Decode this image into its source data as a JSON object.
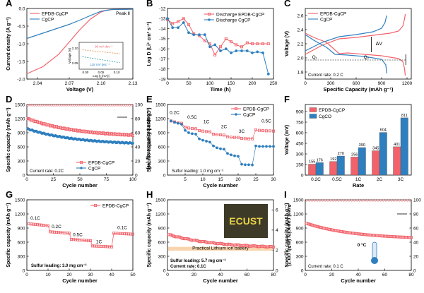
{
  "colors": {
    "red": "#f2626a",
    "blue": "#2e7fbf",
    "gray": "#9a9a9a",
    "teal": "#1f9aa6",
    "orange": "#e08a4a",
    "axis": "#000000"
  },
  "chart_data": [
    {
      "panel": "A",
      "type": "line",
      "xlabel": "Voltage (V)",
      "ylabel": "Current density (A g⁻¹)",
      "xlim": [
        2.03,
        2.13
      ],
      "ylim": [
        -2.0,
        0.0
      ],
      "xticks": [
        2.04,
        2.07,
        2.1,
        2.13
      ],
      "yticks": [
        -2.0,
        -1.5,
        -1.0,
        -0.5,
        0.0
      ],
      "peak_label": "Peak Ⅱ",
      "series": [
        {
          "name": "EPDB-CgCP",
          "color": "red",
          "x": [
            2.03,
            2.045,
            2.06,
            2.07,
            2.08,
            2.09,
            2.1,
            2.105,
            2.11,
            2.13
          ],
          "y": [
            -1.85,
            -1.65,
            -1.3,
            -0.95,
            -0.6,
            -0.3,
            -0.1,
            -0.05,
            -0.03,
            -0.02
          ]
        },
        {
          "name": "CgCP",
          "color": "blue",
          "x": [
            2.03,
            2.05,
            2.07,
            2.08,
            2.09,
            2.1,
            2.11,
            2.13
          ],
          "y": [
            -0.85,
            -0.65,
            -0.45,
            -0.33,
            -0.2,
            -0.08,
            -0.03,
            -0.02
          ]
        }
      ],
      "inset": {
        "xlabel": "Log |I (mA)|",
        "ylabel": "Voltage (V)",
        "xticks": [
          0.0,
          0.05,
          0.1
        ],
        "yticks": [
          2.05,
          2.1
        ],
        "slope1": "90 mV dec⁻¹",
        "slope2": "118 mV dec⁻¹"
      }
    },
    {
      "panel": "B",
      "type": "line",
      "xlabel": "Time (h)",
      "ylabel": "Log D (Li⁺ cm² s⁻¹)",
      "xlim": [
        0,
        250
      ],
      "ylim": [
        -19,
        -12
      ],
      "xticks": [
        0,
        50,
        100,
        150,
        200,
        250
      ],
      "yticks": [
        -12,
        -13,
        -14,
        -15,
        -16,
        -17,
        -18,
        -19
      ],
      "series": [
        {
          "name": "Discharge EPDB-CgCP",
          "color": "red",
          "x": [
            0,
            12,
            25,
            38,
            50,
            62,
            75,
            88,
            100,
            112,
            125,
            138,
            150,
            162,
            175,
            188,
            200,
            212,
            225,
            238
          ],
          "y": [
            -13.1,
            -13.5,
            -13.3,
            -13.0,
            -13.6,
            -14.5,
            -14.7,
            -15.2,
            -15.5,
            -16.6,
            -15.8,
            -15.0,
            -15.3,
            -15.6,
            -15.8,
            -15.4,
            -15.5,
            -15.5,
            -15.5,
            -15.5
          ]
        },
        {
          "name": "Discharge CgCP",
          "color": "blue",
          "x": [
            0,
            12,
            25,
            38,
            50,
            62,
            75,
            88,
            100,
            112,
            125,
            138,
            150,
            162,
            175,
            188,
            200,
            212,
            225,
            238
          ],
          "y": [
            -13.0,
            -13.9,
            -13.9,
            -13.4,
            -14.4,
            -14.6,
            -14.6,
            -14.6,
            -15.8,
            -15.6,
            -16.2,
            -16.0,
            -16.4,
            -16.2,
            -16.2,
            -16.2,
            -16.4,
            -16.3,
            -16.4,
            -18.5
          ]
        }
      ]
    },
    {
      "panel": "C",
      "type": "line",
      "xlabel": "Specific Capacity (mAh g⁻¹)",
      "ylabel": "Voltage (V)",
      "xlim": [
        0,
        1250
      ],
      "ylim": [
        1.7,
        2.7
      ],
      "xticks": [
        0,
        300,
        600,
        900,
        1200
      ],
      "yticks": [
        1.8,
        2.0,
        2.2,
        2.4,
        2.6
      ],
      "annotations": {
        "dv": "ΔV",
        "q1": "Q₁",
        "q2": "Q₂",
        "current": "Current rate: 0.2 C"
      },
      "series": [
        {
          "name": "EPDB-CgCP",
          "color": "red",
          "x": [
            0,
            100,
            250,
            400,
            500,
            700,
            900,
            1100,
            1150,
            1170,
            1180
          ],
          "y": [
            2.35,
            2.29,
            2.22,
            2.06,
            2.07,
            2.05,
            2.03,
            1.99,
            1.95,
            1.85,
            1.75
          ]
        },
        {
          "name": "EPDB-CgCP",
          "color": "red",
          "x": [
            0,
            200,
            400,
            600,
            800,
            1000,
            1100,
            1150,
            1170,
            1180
          ],
          "y": [
            2.05,
            2.18,
            2.27,
            2.29,
            2.32,
            2.35,
            2.38,
            2.45,
            2.55,
            2.62
          ]
        },
        {
          "name": "CgCP",
          "color": "blue",
          "x": [
            0,
            100,
            250,
            350,
            500,
            700,
            900,
            950,
            960
          ],
          "y": [
            2.33,
            2.25,
            2.15,
            2.05,
            2.04,
            2.02,
            1.98,
            1.9,
            1.78
          ]
        },
        {
          "name": "CgCP",
          "color": "blue",
          "x": [
            0,
            200,
            400,
            600,
            800,
            900,
            940,
            960
          ],
          "y": [
            2.1,
            2.22,
            2.3,
            2.33,
            2.37,
            2.42,
            2.5,
            2.6
          ]
        }
      ]
    },
    {
      "panel": "D",
      "type": "scatter",
      "xlabel": "Cycle number",
      "ylabel": "Specific capacity (mAh g⁻¹)",
      "y2label": "Coulombic efficiency (%)",
      "xlim": [
        0,
        100
      ],
      "ylim": [
        0,
        1500
      ],
      "y2lim": [
        0,
        100
      ],
      "xticks": [
        0,
        25,
        50,
        75,
        100
      ],
      "yticks": [
        0,
        300,
        600,
        900,
        1200,
        1500
      ],
      "y2ticks": [
        0,
        20,
        40,
        60,
        80,
        100
      ],
      "note": "Current rate: 0.2C",
      "series": [
        {
          "name": "EPDB-CgCP",
          "color": "red",
          "start": 1200,
          "end": 850
        },
        {
          "name": "CgCP",
          "color": "blue",
          "start": 980,
          "end": 680
        }
      ],
      "ce": 99
    },
    {
      "panel": "E",
      "type": "scatter",
      "xlabel": "Cycle number",
      "ylabel": "Specific capacity (mAh g⁻¹)",
      "xlim": [
        0,
        30
      ],
      "ylim": [
        0,
        1500
      ],
      "xticks": [
        5,
        10,
        15,
        20,
        25,
        30
      ],
      "yticks": [
        0,
        300,
        600,
        900,
        1200,
        1500
      ],
      "rates": [
        "0.2C",
        "0.5C",
        "1C",
        "2C",
        "3C",
        "0.5C"
      ],
      "note": "Sulfur loading: 1.0 mg cm⁻²",
      "series": [
        {
          "name": "EPDB-CgCP",
          "color": "red",
          "values": [
            1150,
            1130,
            1110,
            1100,
            1020,
            1000,
            990,
            985,
            945,
            935,
            925,
            920,
            870,
            860,
            855,
            850,
            815,
            805,
            800,
            800,
            780,
            775,
            770,
            770,
            960,
            950,
            945,
            940,
            940,
            935
          ]
        },
        {
          "name": "CgCP",
          "color": "blue",
          "values": [
            1150,
            1120,
            1100,
            1080,
            950,
            900,
            880,
            870,
            770,
            740,
            720,
            700,
            620,
            580,
            560,
            550,
            460,
            430,
            410,
            400,
            230,
            220,
            220,
            215,
            620,
            610,
            610,
            610,
            610,
            610
          ]
        }
      ]
    },
    {
      "panel": "F",
      "type": "bar",
      "xlabel": "Rate",
      "ylabel": "Voltage (mV)",
      "ylim": [
        0,
        1000
      ],
      "yticks": [
        0,
        150,
        300,
        450,
        600,
        750,
        900
      ],
      "categories": [
        "0.2C",
        "0.5C",
        "1C",
        "2C",
        "3C"
      ],
      "series": [
        {
          "name": "EPDB-CgCP",
          "color": "red",
          "values": [
            155,
            192,
            256,
            345,
            401
          ]
        },
        {
          "name": "CgCO",
          "color": "blue",
          "values": [
            176,
            270,
            390,
            604,
            811
          ]
        }
      ]
    },
    {
      "panel": "G",
      "type": "scatter",
      "xlabel": "Cycle number",
      "ylabel": "Specific capacity (mAh g⁻¹)",
      "xlim": [
        0,
        50
      ],
      "ylim": [
        0,
        1500
      ],
      "xticks": [
        0,
        10,
        20,
        30,
        40,
        50
      ],
      "yticks": [
        0,
        300,
        600,
        900,
        1200,
        1500
      ],
      "rates": [
        "0.1C",
        "0.2C",
        "0.5C",
        "1C",
        "0.1C"
      ],
      "note": "Sulfur loading: 3.0 mg cm⁻²",
      "series": [
        {
          "name": "EPDB-CgCP",
          "color": "red",
          "segments": [
            [
              1,
              10,
              990,
              950
            ],
            [
              11,
              20,
              820,
              790
            ],
            [
              21,
              30,
              660,
              630
            ],
            [
              31,
              40,
              520,
              500
            ],
            [
              41,
              50,
              790,
              770
            ]
          ]
        }
      ]
    },
    {
      "panel": "H",
      "type": "scatter",
      "xlabel": "Cycle number",
      "ylabel": "Specific capacity (mAh g⁻¹)",
      "y2label": "Areal capacity (mAh cm⁻²)",
      "xlim": [
        0,
        80
      ],
      "ylim": [
        0,
        1500
      ],
      "y2lim": [
        0,
        7
      ],
      "xticks": [
        0,
        20,
        40,
        60,
        80
      ],
      "yticks": [
        0,
        300,
        600,
        900,
        1200,
        1500
      ],
      "y2ticks": [
        0,
        2,
        4,
        6
      ],
      "band_label": "Practical Lithium ion battery",
      "note1": "Sulfur loading: 5.7 mg cm⁻²",
      "note2": "Current rate: 0.1C",
      "photo_text": "ECUST",
      "series": [
        {
          "name": "EPDB-CgCP",
          "color": "red",
          "start": 760,
          "end": 500
        }
      ]
    },
    {
      "panel": "I",
      "type": "scatter",
      "xlabel": "Cycle number",
      "ylabel": "Specific capacity (mAh g⁻¹)",
      "y2label": "Coulombic efficiency (%)",
      "xlim": [
        0,
        80
      ],
      "ylim": [
        0,
        1500
      ],
      "y2lim": [
        0,
        100
      ],
      "xticks": [
        0,
        20,
        40,
        60,
        80
      ],
      "yticks": [
        0,
        300,
        600,
        900,
        1200,
        1500
      ],
      "y2ticks": [
        0,
        20,
        40,
        60,
        80,
        100
      ],
      "temp": "0 °C",
      "note": "Current rate: 0.1 C",
      "series": [
        {
          "name": "EPDB-CgCP",
          "color": "red",
          "start": 1000,
          "end": 700
        }
      ],
      "ce": 99
    }
  ]
}
